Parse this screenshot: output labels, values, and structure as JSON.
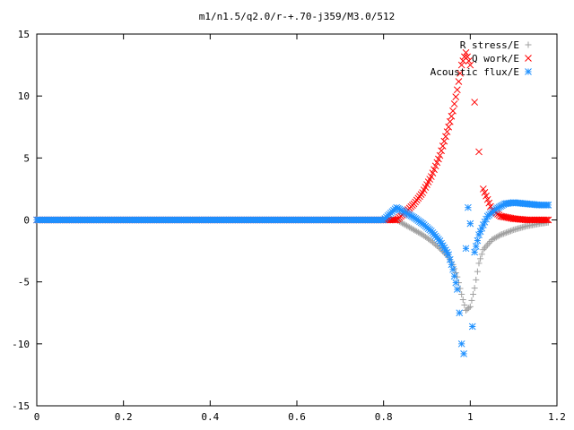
{
  "chart_data": {
    "type": "scatter",
    "title": "m1/n1.5/q2.0/r-+.70-j359/M3.0/512",
    "xlabel": "",
    "ylabel": "",
    "xlim": [
      0,
      1.2
    ],
    "ylim": [
      -15,
      15
    ],
    "x_ticks": [
      0,
      0.2,
      0.4,
      0.6,
      0.8,
      1,
      1.2
    ],
    "x_tick_labels": [
      "0",
      "0.2",
      "0.4",
      "0.6",
      "0.8",
      "1",
      "1.2"
    ],
    "y_ticks": [
      -15,
      -10,
      -5,
      0,
      5,
      10,
      15
    ],
    "y_tick_labels": [
      "-15",
      "-10",
      "-5",
      "0",
      "5",
      "10",
      "15"
    ],
    "grid": false,
    "legend_position": "top-right",
    "series": [
      {
        "name": "R stress/E",
        "marker": "plus",
        "color": "#a0a0a0",
        "x": [
          0.0,
          0.1,
          0.2,
          0.3,
          0.4,
          0.5,
          0.6,
          0.7,
          0.8,
          0.83,
          0.85,
          0.87,
          0.89,
          0.91,
          0.93,
          0.95,
          0.96,
          0.97,
          0.98,
          0.99,
          1.0,
          1.01,
          1.02,
          1.03,
          1.05,
          1.07,
          1.1,
          1.13,
          1.16,
          1.18
        ],
        "y": [
          0.0,
          0.0,
          0.0,
          0.0,
          0.0,
          0.0,
          0.0,
          0.0,
          0.0,
          0.0,
          -0.4,
          -0.8,
          -1.2,
          -1.7,
          -2.3,
          -3.0,
          -3.6,
          -4.6,
          -6.0,
          -7.3,
          -7.0,
          -5.5,
          -3.5,
          -2.4,
          -1.6,
          -1.2,
          -0.8,
          -0.5,
          -0.3,
          -0.2
        ]
      },
      {
        "name": "Q work/E",
        "marker": "cross",
        "color": "#ff0000",
        "x": [
          0.0,
          0.1,
          0.2,
          0.3,
          0.4,
          0.5,
          0.6,
          0.7,
          0.8,
          0.83,
          0.85,
          0.87,
          0.89,
          0.91,
          0.93,
          0.95,
          0.96,
          0.97,
          0.98,
          0.99,
          1.0,
          1.01,
          1.02,
          1.03,
          1.05,
          1.07,
          1.1,
          1.13,
          1.16,
          1.18
        ],
        "y": [
          0.0,
          0.0,
          0.0,
          0.0,
          0.0,
          0.0,
          0.0,
          0.0,
          0.0,
          0.0,
          0.6,
          1.3,
          2.2,
          3.5,
          5.2,
          7.5,
          8.8,
          10.5,
          12.5,
          13.5,
          12.5,
          9.5,
          5.5,
          2.5,
          0.8,
          0.3,
          0.1,
          0.0,
          0.0,
          0.0
        ]
      },
      {
        "name": "Acoustic flux/E",
        "marker": "star",
        "color": "#1e90ff",
        "x": [
          0.0,
          0.1,
          0.2,
          0.3,
          0.4,
          0.5,
          0.6,
          0.7,
          0.8,
          0.83,
          0.85,
          0.87,
          0.89,
          0.91,
          0.93,
          0.95,
          0.96,
          0.97,
          0.975,
          0.98,
          0.985,
          0.99,
          0.995,
          1.0,
          1.005,
          1.01,
          1.02,
          1.03,
          1.04,
          1.06,
          1.08,
          1.1,
          1.13,
          1.16,
          1.18
        ],
        "y": [
          0.0,
          0.0,
          0.0,
          0.0,
          0.0,
          0.0,
          0.0,
          0.0,
          0.0,
          1.0,
          0.6,
          0.2,
          -0.3,
          -0.9,
          -1.7,
          -2.8,
          -4.0,
          -5.6,
          -7.5,
          -10.0,
          -10.8,
          -2.3,
          1.0,
          -0.3,
          -8.6,
          -2.6,
          -1.2,
          -0.4,
          0.3,
          0.9,
          1.3,
          1.4,
          1.3,
          1.2,
          1.2
        ]
      }
    ]
  }
}
